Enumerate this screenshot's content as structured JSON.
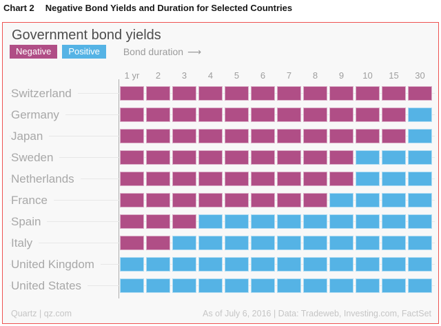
{
  "doc": {
    "chart_label": "Chart 2",
    "title": "Negative Bond Yields and Duration for Selected Countries"
  },
  "chart": {
    "title": "Government bond yields",
    "legend_negative": "Negative",
    "legend_positive": "Positive",
    "duration_label": "Bond duration",
    "duration_arrow": "⟶",
    "border_color": "#ee5250",
    "background_color": "#f8f8f8",
    "negative_color": "#b04e86",
    "positive_color": "#55b3e5"
  },
  "chart_data": {
    "type": "heatmap",
    "title": "Government bond yields",
    "x_axis_label": "Bond duration",
    "x_categories": [
      "1 yr",
      "2",
      "3",
      "4",
      "5",
      "6",
      "7",
      "8",
      "9",
      "10",
      "15",
      "30"
    ],
    "y_categories": [
      "Switzerland",
      "Germany",
      "Japan",
      "Sweden",
      "Netherlands",
      "France",
      "Spain",
      "Italy",
      "United Kingdom",
      "United States"
    ],
    "legend": [
      {
        "label": "Negative",
        "value": "negative",
        "color": "#b04e86"
      },
      {
        "label": "Positive",
        "value": "positive",
        "color": "#55b3e5"
      }
    ],
    "rows": [
      {
        "country": "Switzerland",
        "cells": [
          "negative",
          "negative",
          "negative",
          "negative",
          "negative",
          "negative",
          "negative",
          "negative",
          "negative",
          "negative",
          "negative",
          "negative"
        ]
      },
      {
        "country": "Germany",
        "cells": [
          "negative",
          "negative",
          "negative",
          "negative",
          "negative",
          "negative",
          "negative",
          "negative",
          "negative",
          "negative",
          "negative",
          "positive"
        ]
      },
      {
        "country": "Japan",
        "cells": [
          "negative",
          "negative",
          "negative",
          "negative",
          "negative",
          "negative",
          "negative",
          "negative",
          "negative",
          "negative",
          "negative",
          "positive"
        ]
      },
      {
        "country": "Sweden",
        "cells": [
          "negative",
          "negative",
          "negative",
          "negative",
          "negative",
          "negative",
          "negative",
          "negative",
          "negative",
          "positive",
          "positive",
          "positive"
        ]
      },
      {
        "country": "Netherlands",
        "cells": [
          "negative",
          "negative",
          "negative",
          "negative",
          "negative",
          "negative",
          "negative",
          "negative",
          "negative",
          "positive",
          "positive",
          "positive"
        ]
      },
      {
        "country": "France",
        "cells": [
          "negative",
          "negative",
          "negative",
          "negative",
          "negative",
          "negative",
          "negative",
          "negative",
          "positive",
          "positive",
          "positive",
          "positive"
        ]
      },
      {
        "country": "Spain",
        "cells": [
          "negative",
          "negative",
          "negative",
          "positive",
          "positive",
          "positive",
          "positive",
          "positive",
          "positive",
          "positive",
          "positive",
          "positive"
        ]
      },
      {
        "country": "Italy",
        "cells": [
          "negative",
          "negative",
          "positive",
          "positive",
          "positive",
          "positive",
          "positive",
          "positive",
          "positive",
          "positive",
          "positive",
          "positive"
        ]
      },
      {
        "country": "United Kingdom",
        "cells": [
          "positive",
          "positive",
          "positive",
          "positive",
          "positive",
          "positive",
          "positive",
          "positive",
          "positive",
          "positive",
          "positive",
          "positive"
        ]
      },
      {
        "country": "United States",
        "cells": [
          "positive",
          "positive",
          "positive",
          "positive",
          "positive",
          "positive",
          "positive",
          "positive",
          "positive",
          "positive",
          "positive",
          "positive"
        ]
      }
    ]
  },
  "footer": {
    "left": "Quartz | qz.com",
    "right": "As of July 6, 2016 | Data: Tradeweb, Investing.com, FactSet"
  }
}
